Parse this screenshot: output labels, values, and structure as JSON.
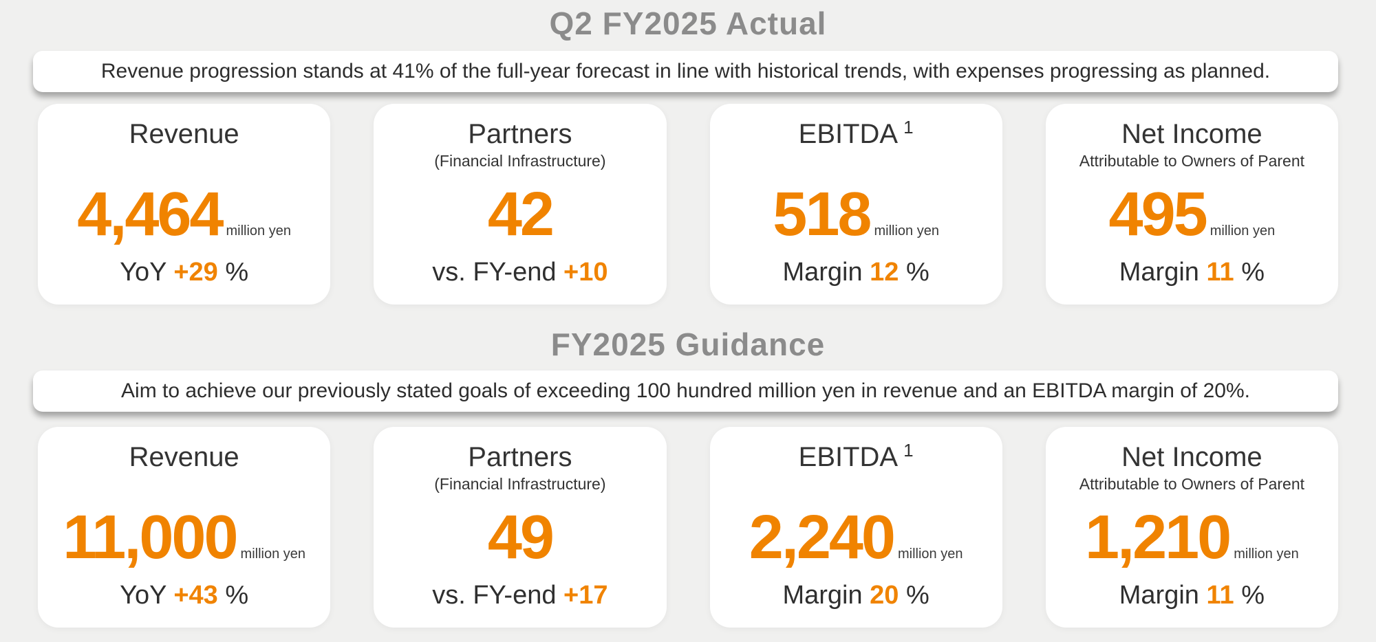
{
  "palette": {
    "background": "#f0f0ef",
    "card_background": "#ffffff",
    "accent_orange": "#f08300",
    "title_gray": "#8b8b8b",
    "text_dark": "#2f2f2f"
  },
  "sections": [
    {
      "title": "Q2 FY2025 Actual",
      "banner": "Revenue progression stands at 41% of the full-year forecast in line with historical trends, with expenses progressing as planned.",
      "cards": [
        {
          "title": "Revenue",
          "subtitle": "",
          "value": "4,464",
          "unit": "million yen",
          "metric_prefix": "YoY ",
          "metric_value": "+29",
          "metric_suffix": " %"
        },
        {
          "title": "Partners",
          "subtitle": "(Financial Infrastructure)",
          "value": "42",
          "unit": "",
          "metric_prefix": "vs. FY-end ",
          "metric_value": "+10",
          "metric_suffix": ""
        },
        {
          "title": "EBITDA",
          "title_sup": "1",
          "subtitle": "",
          "value": "518",
          "unit": "million yen",
          "metric_prefix": "Margin ",
          "metric_value": "12",
          "metric_suffix": " %"
        },
        {
          "title": "Net Income",
          "subtitle": "Attributable to Owners of Parent",
          "value": "495",
          "unit": "million yen",
          "metric_prefix": "Margin ",
          "metric_value": "11",
          "metric_suffix": " %"
        }
      ]
    },
    {
      "title": "FY2025 Guidance",
      "banner": "Aim to achieve our previously stated goals of exceeding 100 hundred million yen in revenue and an EBITDA margin of 20%.",
      "cards": [
        {
          "title": "Revenue",
          "subtitle": "",
          "value": "11,000",
          "unit": "million yen",
          "metric_prefix": "YoY ",
          "metric_value": "+43",
          "metric_suffix": " %"
        },
        {
          "title": "Partners",
          "subtitle": "(Financial Infrastructure)",
          "value": "49",
          "unit": "",
          "metric_prefix": "vs. FY-end ",
          "metric_value": "+17",
          "metric_suffix": ""
        },
        {
          "title": "EBITDA",
          "title_sup": "1",
          "subtitle": "",
          "value": "2,240",
          "unit": "million yen",
          "metric_prefix": "Margin ",
          "metric_value": "20",
          "metric_suffix": " %"
        },
        {
          "title": "Net Income",
          "subtitle": "Attributable to Owners of Parent",
          "value": "1,210",
          "unit": "million yen",
          "metric_prefix": "Margin ",
          "metric_value": "11",
          "metric_suffix": " %"
        }
      ]
    }
  ]
}
